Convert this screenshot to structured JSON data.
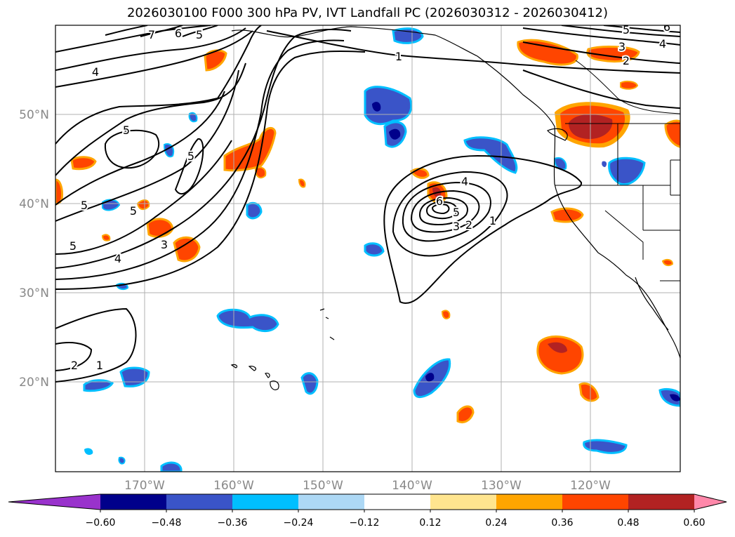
{
  "title": "2026030100 F000 300 hPa PV, IVT Landfall PC (2026030312 - 2026030412)",
  "lat_labels": [
    "50°N",
    "40°N",
    "30°N",
    "20°N"
  ],
  "lon_labels": [
    "170°W",
    "160°W",
    "150°W",
    "140°W",
    "130°W",
    "120°W"
  ],
  "colorbar": {
    "ticks": [
      "−0.60",
      "−0.48",
      "−0.36",
      "−0.24",
      "−0.12",
      "0.12",
      "0.24",
      "0.36",
      "0.48",
      "0.60"
    ],
    "colors": [
      "#9932cc",
      "#00008b",
      "#3a54c8",
      "#00bfff",
      "#add8f5",
      "#ffffff",
      "#ffe58f",
      "#ffa500",
      "#ff4500",
      "#b22222",
      "#ff88aa"
    ]
  },
  "contour_labels": {
    "c7": "7",
    "c6a": "6",
    "c5a": "5",
    "c4a": "4",
    "c5b": "5",
    "c5c": "5",
    "c5d": "5",
    "c5e": "5",
    "c5f": "5",
    "c4b": "4",
    "c3a": "3",
    "c2a": "2",
    "c1a": "1",
    "c1b": "1",
    "c4c": "4",
    "c6b": "6",
    "c5g": "5",
    "c3b": "3",
    "c2b": "2",
    "c1c": "1",
    "c5h": "5",
    "c6c": "6",
    "c3c": "3",
    "c4d": "4",
    "c2c": "2"
  }
}
